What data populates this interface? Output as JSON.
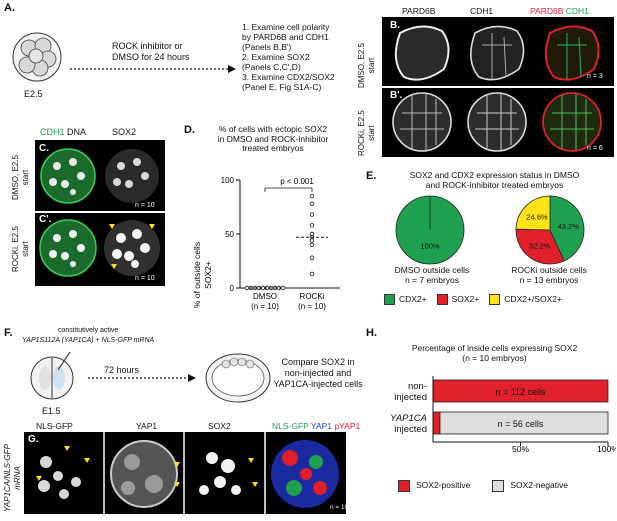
{
  "panelA": {
    "label": "A.",
    "stage": "E2.5",
    "arrow_line1": "ROCK inhibitor or",
    "arrow_line2": "DMSO for 24 hours",
    "steps": [
      "1. Examine cell polarity",
      "by PARD6B and CDH1",
      "(Panels B,B')",
      "2. Examine SOX2",
      "(Panels C,C',D)",
      "3. Examine CDX2/SOX2",
      "(Panel E, Fig S1A-C)"
    ]
  },
  "panelB": {
    "label": "B.",
    "label2": "B'.",
    "col1": "PARD6B",
    "col2": "CDH1",
    "merge_a": "PARD6B",
    "merge_b": "CDH1",
    "row1": "DMSO, E2.5",
    "row1b": "start",
    "row2": "ROCKi, E2.5",
    "row2b": "start",
    "n1": "n = 3",
    "n2": "n = 6"
  },
  "panelC": {
    "label": "C.",
    "label2": "C'.",
    "col1_a": "CDH1",
    "col1_b": "DNA",
    "col2": "SOX2",
    "row1": "DMSO, E2.5",
    "row1b": "start",
    "row2": "ROCKi, E2.5",
    "row2b": "start",
    "n1": "n = 10",
    "n2": "n = 10"
  },
  "panelD": {
    "label": "D.",
    "title1": "% of cells with ectopic SOX2",
    "title2": "in DMSO and ROCK-inhibitor",
    "title3": "treated embryos",
    "ylabel1": "% of outside cells",
    "ylabel2": "SOX2+",
    "pval": "p < 0.001",
    "xtick1": "DMSO",
    "xtick1b": "(n = 10)",
    "xtick2": "ROCKi",
    "xtick2b": "(n = 10)"
  },
  "panelE": {
    "label": "E.",
    "title1": "SOX2 and CDX2 expression status in DMSO",
    "title2": "and ROCK-inhibitor treated embryos",
    "pie1_caption1": "DMSO outside cells",
    "pie1_caption2": "n = 7 embryos",
    "pie2_caption1": "ROCKi outside cells",
    "pie2_caption2": "n = 13 embryos",
    "legend": [
      "CDX2+",
      "SOX2+",
      "CDX2+/SOX2+"
    ],
    "colors": {
      "green": "#1fa150",
      "red": "#e0202a",
      "yellow": "#ffe31a"
    }
  },
  "panelF": {
    "label": "F.",
    "note1": "constitutively active",
    "note2": "YAP1S112A (YAP1CA) + NLS-GFP mRNA",
    "stage": "E1.5",
    "arrow": "72 hours",
    "result1": "Compare SOX2 in",
    "result2": "non-injected and",
    "result3": "YAP1CA-injected cells"
  },
  "panelG": {
    "label": "G.",
    "side1": "YAP1CA/NLS-GFP",
    "side2": "mRNA",
    "col1": "NLS-GFP",
    "col2": "YAP1",
    "col3": "SOX2",
    "col4_a": "NLS-GFP",
    "col4_b": "YAP1",
    "col4_c": "pYAP1",
    "n": "n = 10"
  },
  "panelH": {
    "label": "H.",
    "title1": "Percentage of inside cells expressing SOX2",
    "title2": "(n = 10 embryos)",
    "legend_pos": "SOX2-positive",
    "legend_neg": "SOX2-negative"
  },
  "chart_data": [
    {
      "type": "scatter",
      "title": "% of cells with ectopic SOX2 in DMSO and ROCK-inhibitor treated embryos",
      "ylabel": "% of outside cells SOX2+",
      "categories": [
        "DMSO (n = 10)",
        "ROCKi (n = 10)"
      ],
      "ylim": [
        0,
        100
      ],
      "yticks": [
        0,
        50,
        100
      ],
      "series": [
        {
          "name": "DMSO",
          "values": [
            0,
            0,
            0,
            0,
            0,
            0,
            0,
            0,
            0,
            0
          ],
          "mean": 0
        },
        {
          "name": "ROCKi",
          "values": [
            85,
            78,
            68,
            58,
            50,
            47,
            44,
            40,
            28,
            13
          ],
          "mean": 47
        }
      ],
      "annotation": "p < 0.001"
    },
    {
      "type": "pie",
      "caption": "DMSO outside cells, n = 7 embryos",
      "slices": [
        {
          "name": "CDX2+",
          "value": 100,
          "label": "100%"
        }
      ]
    },
    {
      "type": "pie",
      "caption": "ROCKi outside cells, n = 13 embryos",
      "slices": [
        {
          "name": "CDX2+",
          "value": 43.2,
          "label": "43.2%"
        },
        {
          "name": "SOX2+",
          "value": 32.2,
          "label": "32.2%"
        },
        {
          "name": "CDX2+/SOX2+",
          "value": 24.6,
          "label": "24.6%"
        }
      ]
    },
    {
      "type": "bar",
      "orientation": "horizontal",
      "title": "Percentage of inside cells expressing SOX2 (n = 10 embryos)",
      "categories": [
        "non-injected",
        "YAP1CA injected"
      ],
      "series": [
        {
          "name": "SOX2-positive",
          "values": [
            100,
            4
          ]
        },
        {
          "name": "SOX2-negative",
          "values": [
            0,
            96
          ]
        }
      ],
      "bar_labels": [
        "n = 112 cells",
        "n = 56 cells"
      ],
      "xticks": [
        "50%",
        "100%"
      ],
      "xlim": [
        0,
        100
      ]
    }
  ]
}
